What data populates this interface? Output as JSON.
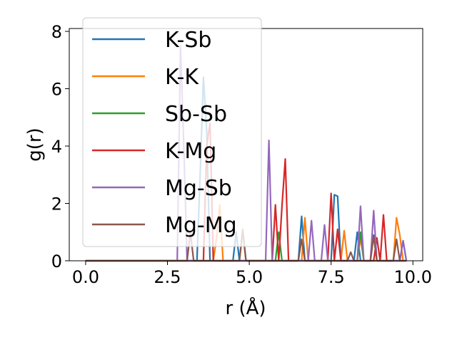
{
  "chart_data": {
    "type": "line",
    "title": "",
    "xlabel": "r (Å)",
    "ylabel": "g(r)",
    "xlim": [
      -0.5,
      10.3
    ],
    "ylim": [
      0,
      8.1
    ],
    "xticks": [
      0.0,
      2.5,
      5.0,
      7.5,
      10.0
    ],
    "xtick_labels": [
      "0.0",
      "2.5",
      "5.0",
      "7.5",
      "10.0"
    ],
    "yticks": [
      0,
      2,
      4,
      6,
      8
    ],
    "ytick_labels": [
      "0",
      "2",
      "4",
      "6",
      "8"
    ],
    "grid": false,
    "legend_position": "top-left",
    "series": [
      {
        "name": "K-Sb",
        "color": "#1f77b4",
        "x": [
          0,
          3.4,
          3.5,
          3.6,
          3.7,
          3.8,
          4.5,
          4.6,
          4.7,
          6.5,
          6.6,
          6.7,
          7.5,
          7.6,
          7.7,
          7.8,
          8.2,
          8.3,
          8.4,
          8.7,
          8.8,
          8.9,
          9.0,
          9.6,
          9.7,
          9.8
        ],
        "y": [
          0,
          0,
          3.0,
          6.4,
          4.5,
          0,
          0,
          1.0,
          0,
          0,
          1.55,
          0,
          0,
          2.3,
          2.25,
          0,
          0,
          1.0,
          0,
          0,
          0.9,
          0,
          0,
          0,
          0.7,
          0
        ]
      },
      {
        "name": "K-K",
        "color": "#ff7f0e",
        "x": [
          0,
          3.9,
          4.0,
          4.1,
          4.2,
          6.6,
          6.7,
          6.8,
          7.8,
          7.9,
          8.0,
          8.3,
          8.4,
          8.5,
          9.4,
          9.5,
          9.6,
          9.7
        ],
        "y": [
          0,
          0,
          0.8,
          1.95,
          0,
          0,
          1.5,
          0,
          0,
          1.05,
          0,
          0,
          0.8,
          0,
          0,
          1.5,
          0.9,
          0
        ]
      },
      {
        "name": "Sb-Sb",
        "color": "#2ca02c",
        "x": [
          0,
          4.7,
          4.8,
          4.9,
          5.8,
          5.9,
          6.0,
          8.3,
          8.4,
          8.5,
          9.8
        ],
        "y": [
          0,
          0,
          1.1,
          0,
          0,
          1.0,
          0,
          0,
          1.0,
          0,
          0
        ]
      },
      {
        "name": "K-Mg",
        "color": "#d62728",
        "x": [
          0,
          3.6,
          3.7,
          3.8,
          3.9,
          5.7,
          5.8,
          5.9,
          6.0,
          6.1,
          6.2,
          7.4,
          7.5,
          7.6,
          7.7,
          7.8,
          8.8,
          8.9,
          9.0,
          9.1,
          9.2,
          9.8
        ],
        "y": [
          0,
          0,
          4.0,
          4.8,
          0,
          0,
          1.95,
          0,
          1.9,
          3.55,
          0,
          0,
          2.35,
          0,
          1.1,
          0,
          0,
          0.8,
          0,
          1.6,
          0,
          0
        ]
      },
      {
        "name": "Mg-Sb",
        "color": "#9467bd",
        "x": [
          0,
          2.8,
          2.9,
          3.0,
          3.1,
          5.5,
          5.6,
          5.7,
          6.8,
          6.9,
          7.0,
          7.2,
          7.3,
          7.4,
          8.3,
          8.4,
          8.5,
          8.7,
          8.8,
          8.9,
          9.6,
          9.7,
          9.8
        ],
        "y": [
          0,
          0,
          7.5,
          4.0,
          0,
          0,
          4.2,
          0,
          0,
          1.4,
          0,
          0,
          1.25,
          0,
          0,
          1.9,
          0,
          0,
          1.75,
          0,
          0,
          0.7,
          0
        ]
      },
      {
        "name": "Mg-Mg",
        "color": "#8c564b",
        "x": [
          0,
          3.1,
          3.2,
          3.3,
          4.7,
          4.8,
          4.9,
          6.5,
          6.6,
          6.7,
          8.0,
          8.1,
          8.2,
          8.7,
          8.8,
          8.9,
          9.4,
          9.5,
          9.6,
          9.8
        ],
        "y": [
          0,
          0,
          1.0,
          0,
          0,
          1.05,
          0,
          0,
          0.75,
          0,
          0,
          0.3,
          0,
          0,
          0.85,
          0,
          0,
          0.75,
          0,
          0
        ]
      }
    ]
  }
}
